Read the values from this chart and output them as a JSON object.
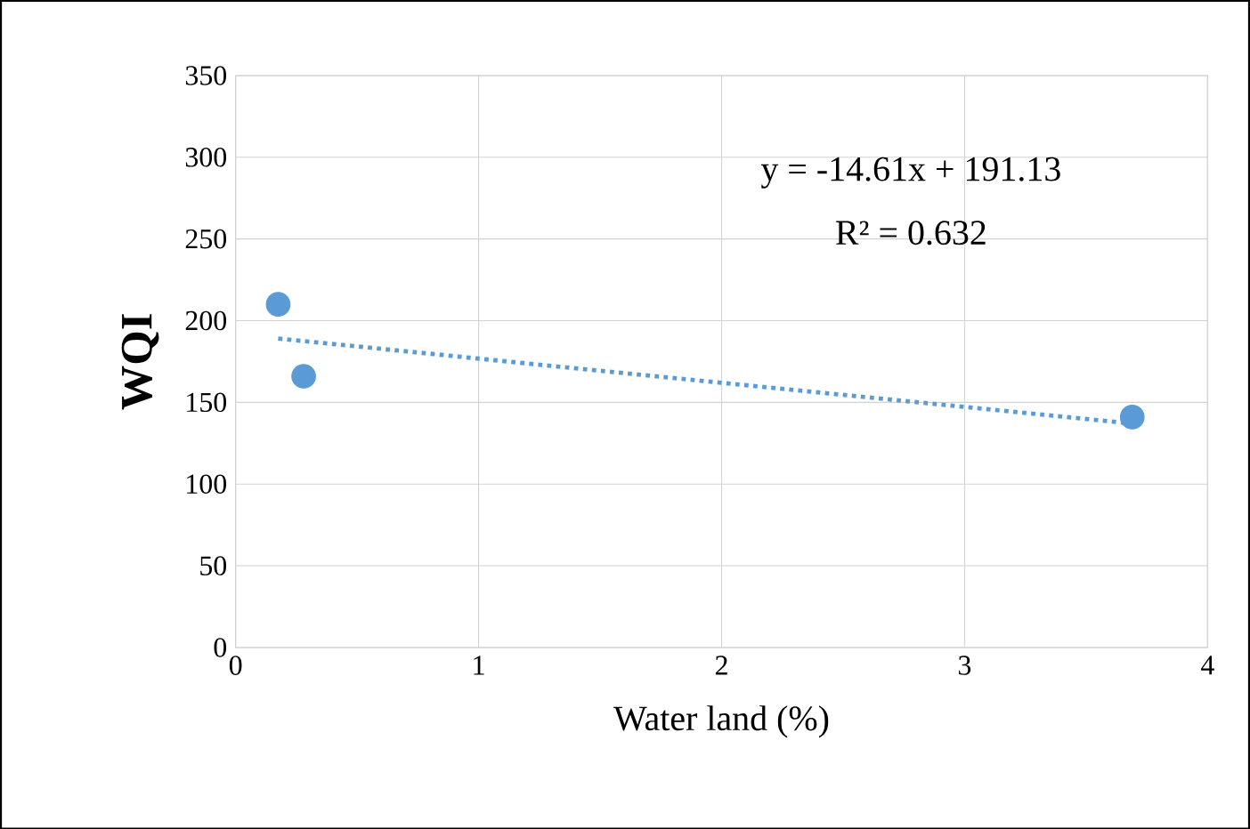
{
  "chart_data": {
    "type": "scatter",
    "xlabel": "Water land (%)",
    "ylabel": "WQI",
    "xlim": [
      0,
      4
    ],
    "ylim": [
      0,
      350
    ],
    "xticks": [
      0,
      1,
      2,
      3,
      4
    ],
    "yticks": [
      0,
      50,
      100,
      150,
      200,
      250,
      300,
      350
    ],
    "grid": true,
    "series": [
      {
        "marker": "circle",
        "color": "#5b9bd5",
        "x": [
          0.175,
          0.28,
          3.69
        ],
        "values": [
          210,
          166,
          141
        ]
      },
      {
        "type": "line",
        "color": "#5b9bd5",
        "line_style": "dotted",
        "marker": "none",
        "x": [
          0.175,
          3.69
        ],
        "values": [
          189,
          137
        ]
      }
    ],
    "annotations": [
      "y = -14.61x + 191.13",
      "R² = 0.632"
    ]
  }
}
